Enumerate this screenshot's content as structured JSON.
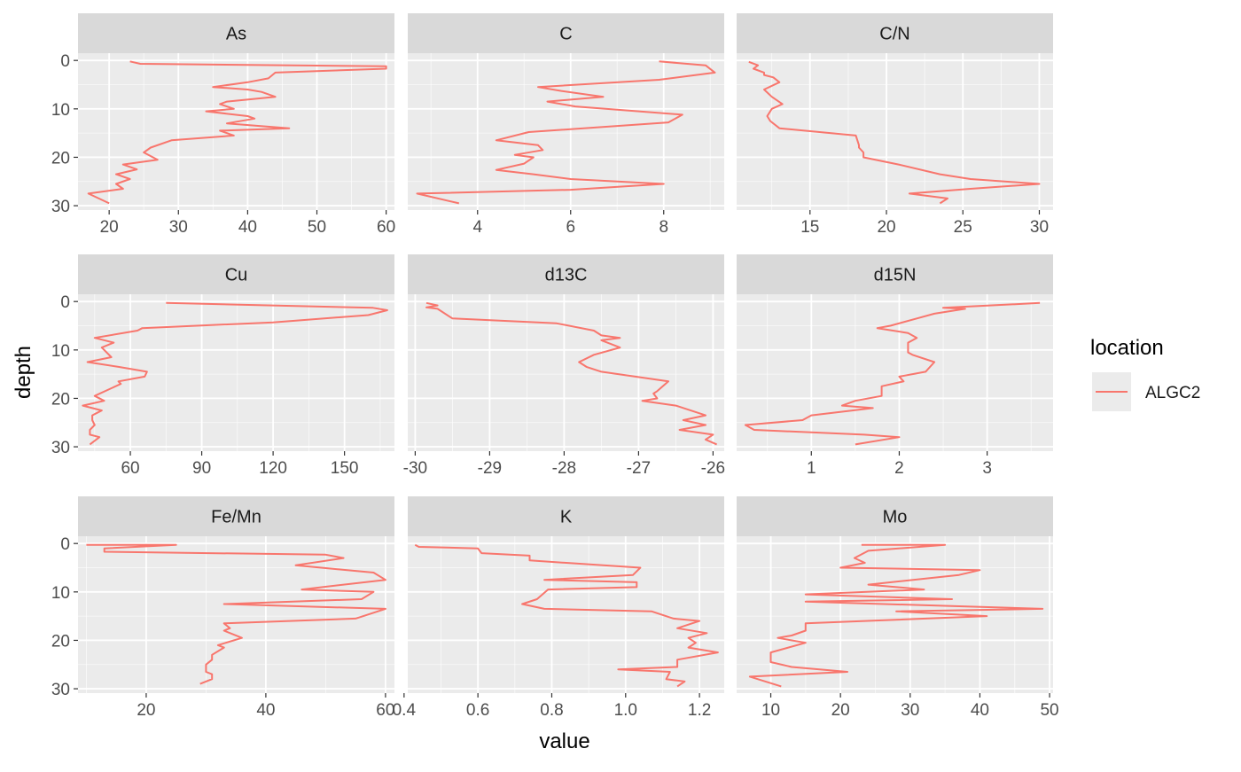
{
  "chart_data": {
    "type": "line",
    "xlabel": "value",
    "ylabel": "depth",
    "legend": {
      "title": "location",
      "position": "right",
      "entries": [
        {
          "name": "ALGC2",
          "color": "#F8766D"
        }
      ]
    },
    "colors": {
      "series": "#F8766D",
      "panel_bg": "#EBEBEB",
      "strip_bg": "#D9D9D9",
      "grid": "#FFFFFF"
    },
    "y_range": [
      0,
      30
    ],
    "y_ticks": [
      "0",
      "10",
      "20",
      "30"
    ],
    "y_tick_values": [
      0,
      10,
      20,
      30
    ],
    "y_reversed": true,
    "grid": true,
    "facets": [
      {
        "name": "As",
        "xlim": [
          15.5,
          61.2
        ],
        "x_ticks": [
          "20",
          "30",
          "40",
          "50",
          "60"
        ],
        "x_tick_values": [
          20,
          30,
          40,
          50,
          60
        ],
        "points": [
          [
            23,
            0.2
          ],
          [
            24.5,
            0.7
          ],
          [
            60,
            1.2
          ],
          [
            60,
            1.7
          ],
          [
            44,
            2.5
          ],
          [
            43,
            3.7
          ],
          [
            40,
            4.5
          ],
          [
            35,
            5.5
          ],
          [
            40,
            6
          ],
          [
            42,
            6.5
          ],
          [
            44,
            7.5
          ],
          [
            37,
            8.5
          ],
          [
            36,
            9
          ],
          [
            38,
            10
          ],
          [
            34,
            10.5
          ],
          [
            40,
            11.5
          ],
          [
            41,
            12
          ],
          [
            37,
            13
          ],
          [
            46,
            14
          ],
          [
            36,
            14.5
          ],
          [
            38,
            15.5
          ],
          [
            29,
            16.5
          ],
          [
            26,
            18
          ],
          [
            25,
            19
          ],
          [
            27,
            20.5
          ],
          [
            22,
            21.5
          ],
          [
            24,
            22.5
          ],
          [
            21,
            23.5
          ],
          [
            23,
            24.5
          ],
          [
            21,
            25.5
          ],
          [
            22,
            26.5
          ],
          [
            17,
            27.5
          ],
          [
            20,
            29.5
          ]
        ]
      },
      {
        "name": "C",
        "xlim": [
          2.5,
          9.3
        ],
        "x_ticks": [
          "4",
          "6",
          "8"
        ],
        "x_tick_values": [
          4,
          6,
          8
        ],
        "points": [
          [
            7.9,
            0.2
          ],
          [
            8.9,
            1
          ],
          [
            9.1,
            2.5
          ],
          [
            7.9,
            4
          ],
          [
            5.3,
            5.5
          ],
          [
            5.8,
            6.3
          ],
          [
            6.7,
            7.5
          ],
          [
            5.5,
            8.5
          ],
          [
            6.1,
            9.5
          ],
          [
            8.4,
            11.2
          ],
          [
            8.1,
            12.8
          ],
          [
            5.1,
            14.8
          ],
          [
            4.4,
            16.5
          ],
          [
            5.3,
            17.5
          ],
          [
            5.4,
            18.5
          ],
          [
            4.8,
            19.5
          ],
          [
            5.2,
            20
          ],
          [
            5,
            21.3
          ],
          [
            4.4,
            22.6
          ],
          [
            5.2,
            23.5
          ],
          [
            6,
            24.5
          ],
          [
            8,
            25.5
          ],
          [
            6,
            26.7
          ],
          [
            2.7,
            27.5
          ],
          [
            3.6,
            29.5
          ]
        ]
      },
      {
        "name": "C/N",
        "xlim": [
          10.2,
          30.9
        ],
        "x_ticks": [
          "15",
          "20",
          "25",
          "30"
        ],
        "x_tick_values": [
          15,
          20,
          25,
          30
        ],
        "points": [
          [
            11,
            0.3
          ],
          [
            11.6,
            1
          ],
          [
            11.3,
            1.7
          ],
          [
            12,
            2.5
          ],
          [
            12,
            3
          ],
          [
            12.6,
            3.5
          ],
          [
            13,
            4.5
          ],
          [
            12,
            6
          ],
          [
            12.5,
            7.5
          ],
          [
            13.2,
            9
          ],
          [
            12.5,
            10
          ],
          [
            12.2,
            11.5
          ],
          [
            12.4,
            12.5
          ],
          [
            13,
            14
          ],
          [
            18,
            15.5
          ],
          [
            18.2,
            17.5
          ],
          [
            18.2,
            18
          ],
          [
            18.5,
            19
          ],
          [
            18.5,
            20
          ],
          [
            20.8,
            21.5
          ],
          [
            23.5,
            23.5
          ],
          [
            25.5,
            24.5
          ],
          [
            30,
            25.5
          ],
          [
            25.5,
            26.5
          ],
          [
            21.5,
            27.5
          ],
          [
            24,
            28.5
          ],
          [
            23.5,
            29.5
          ]
        ]
      },
      {
        "name": "Cu",
        "xlim": [
          38,
          171
        ],
        "x_ticks": [
          "60",
          "90",
          "120",
          "150"
        ],
        "x_tick_values": [
          60,
          90,
          120,
          150
        ],
        "points": [
          [
            75,
            0.3
          ],
          [
            162,
            1.3
          ],
          [
            168,
            1.8
          ],
          [
            160,
            2.8
          ],
          [
            120,
            4.3
          ],
          [
            65,
            5.5
          ],
          [
            63,
            6
          ],
          [
            45,
            7.5
          ],
          [
            53,
            8.5
          ],
          [
            48,
            9.5
          ],
          [
            52,
            11.5
          ],
          [
            42,
            12.5
          ],
          [
            55,
            13.5
          ],
          [
            67,
            14.5
          ],
          [
            66,
            15.5
          ],
          [
            55,
            16.5
          ],
          [
            56,
            17
          ],
          [
            45,
            19.5
          ],
          [
            49,
            20.5
          ],
          [
            40,
            21.5
          ],
          [
            48,
            22.5
          ],
          [
            46,
            23
          ],
          [
            44,
            23.5
          ],
          [
            44,
            24.5
          ],
          [
            45,
            25.5
          ],
          [
            43,
            26.5
          ],
          [
            43,
            27.5
          ],
          [
            47,
            28
          ],
          [
            43,
            29.5
          ]
        ]
      },
      {
        "name": "d13C",
        "xlim": [
          -30.1,
          -25.85
        ],
        "x_ticks": [
          "-30",
          "-29",
          "-28",
          "-27",
          "-26"
        ],
        "x_tick_values": [
          -30,
          -29,
          -28,
          -27,
          -26
        ],
        "points": [
          [
            -29.85,
            0.3
          ],
          [
            -29.7,
            0.8
          ],
          [
            -29.85,
            1.2
          ],
          [
            -29.7,
            1.5
          ],
          [
            -29.5,
            3.5
          ],
          [
            -28.1,
            4.5
          ],
          [
            -27.6,
            6
          ],
          [
            -27.5,
            7
          ],
          [
            -27.25,
            7.5
          ],
          [
            -27.5,
            8
          ],
          [
            -27.25,
            9.5
          ],
          [
            -27.6,
            11
          ],
          [
            -27.8,
            12.5
          ],
          [
            -27.7,
            13.5
          ],
          [
            -27.5,
            14.5
          ],
          [
            -26.6,
            16.5
          ],
          [
            -26.75,
            18.5
          ],
          [
            -26.8,
            19
          ],
          [
            -26.75,
            20
          ],
          [
            -26.95,
            20.5
          ],
          [
            -26.5,
            21.5
          ],
          [
            -26.1,
            23.5
          ],
          [
            -26.4,
            24.5
          ],
          [
            -26.1,
            25.5
          ],
          [
            -26.45,
            26.5
          ],
          [
            -26,
            27.5
          ],
          [
            -26.1,
            28.5
          ],
          [
            -25.95,
            29.5
          ]
        ]
      },
      {
        "name": "d15N",
        "xlim": [
          0.15,
          3.75
        ],
        "x_ticks": [
          "1",
          "2",
          "3"
        ],
        "x_tick_values": [
          1,
          2,
          3
        ],
        "points": [
          [
            3.6,
            0.3
          ],
          [
            2.5,
            1.3
          ],
          [
            2.75,
            1.5
          ],
          [
            2.4,
            2.5
          ],
          [
            2.2,
            3.5
          ],
          [
            1.9,
            5
          ],
          [
            1.75,
            5.5
          ],
          [
            2.1,
            6.5
          ],
          [
            2.2,
            7.5
          ],
          [
            2.1,
            8.5
          ],
          [
            2.1,
            10.5
          ],
          [
            2.15,
            11
          ],
          [
            2.4,
            12.5
          ],
          [
            2.3,
            14.5
          ],
          [
            2,
            15.5
          ],
          [
            2.05,
            16.5
          ],
          [
            1.8,
            17.5
          ],
          [
            1.8,
            19.5
          ],
          [
            1.5,
            20.5
          ],
          [
            1.35,
            21.5
          ],
          [
            1.7,
            22
          ],
          [
            1,
            23.5
          ],
          [
            0.9,
            24.5
          ],
          [
            0.25,
            25.5
          ],
          [
            0.35,
            26.5
          ],
          [
            1.6,
            27.5
          ],
          [
            2,
            28
          ],
          [
            1.5,
            29.5
          ]
        ]
      },
      {
        "name": "Fe/Mn",
        "xlim": [
          8.6,
          61.5
        ],
        "x_ticks": [
          "20",
          "40",
          "60"
        ],
        "x_tick_values": [
          20,
          40,
          60
        ],
        "points": [
          [
            10,
            0.3
          ],
          [
            25,
            0.3
          ],
          [
            13,
            1
          ],
          [
            13,
            1.7
          ],
          [
            50,
            2.3
          ],
          [
            53,
            3
          ],
          [
            45,
            4.5
          ],
          [
            58,
            6
          ],
          [
            60,
            7.5
          ],
          [
            46,
            9.5
          ],
          [
            58,
            10
          ],
          [
            56,
            11.5
          ],
          [
            33,
            12.5
          ],
          [
            60,
            13.5
          ],
          [
            55,
            15.5
          ],
          [
            33,
            16.5
          ],
          [
            34,
            17.5
          ],
          [
            33,
            18
          ],
          [
            36,
            19.5
          ],
          [
            32,
            21
          ],
          [
            33,
            21.5
          ],
          [
            31,
            23
          ],
          [
            31,
            24
          ],
          [
            30,
            25
          ],
          [
            30,
            26.5
          ],
          [
            31,
            27
          ],
          [
            31,
            28
          ],
          [
            29,
            29
          ]
        ]
      },
      {
        "name": "K",
        "xlim": [
          0.41,
          1.267
        ],
        "x_ticks": [
          "0.4",
          "0.6",
          "0.8",
          "1.0",
          "1.2"
        ],
        "x_tick_values": [
          0.4,
          0.6,
          0.8,
          1.0,
          1.2
        ],
        "points": [
          [
            0.43,
            0.3
          ],
          [
            0.44,
            0.7
          ],
          [
            0.6,
            1
          ],
          [
            0.61,
            2
          ],
          [
            0.74,
            2.5
          ],
          [
            0.74,
            3.5
          ],
          [
            1.04,
            5
          ],
          [
            1.02,
            6.5
          ],
          [
            0.78,
            7.5
          ],
          [
            1.03,
            8
          ],
          [
            1.03,
            9
          ],
          [
            0.79,
            9.5
          ],
          [
            0.76,
            11.5
          ],
          [
            0.72,
            12.5
          ],
          [
            0.78,
            13.5
          ],
          [
            1.07,
            14
          ],
          [
            1.13,
            15.5
          ],
          [
            1.2,
            16
          ],
          [
            1.14,
            17.5
          ],
          [
            1.22,
            18.5
          ],
          [
            1.17,
            19.5
          ],
          [
            1.19,
            20.5
          ],
          [
            1.17,
            21.5
          ],
          [
            1.25,
            22.5
          ],
          [
            1.14,
            24
          ],
          [
            1.14,
            25.5
          ],
          [
            0.98,
            26
          ],
          [
            1.12,
            26.5
          ],
          [
            1.11,
            28
          ],
          [
            1.16,
            28.5
          ],
          [
            1.14,
            29.5
          ]
        ]
      },
      {
        "name": "Mo",
        "xlim": [
          5.1,
          50.5
        ],
        "x_ticks": [
          "10",
          "20",
          "30",
          "40",
          "50"
        ],
        "x_tick_values": [
          10,
          20,
          30,
          40,
          50
        ],
        "points": [
          [
            23,
            0.3
          ],
          [
            35,
            0.3
          ],
          [
            24,
            1.5
          ],
          [
            22,
            3
          ],
          [
            23.5,
            4
          ],
          [
            20,
            5
          ],
          [
            40,
            5.5
          ],
          [
            37,
            6.5
          ],
          [
            24,
            8.5
          ],
          [
            32,
            9.5
          ],
          [
            15,
            10.5
          ],
          [
            36,
            11.5
          ],
          [
            15,
            12
          ],
          [
            49,
            13.5
          ],
          [
            28,
            14
          ],
          [
            41,
            15
          ],
          [
            15,
            16.5
          ],
          [
            15,
            18
          ],
          [
            13,
            19
          ],
          [
            11,
            19.5
          ],
          [
            15,
            20.5
          ],
          [
            10,
            22.5
          ],
          [
            10,
            24
          ],
          [
            10,
            24.5
          ],
          [
            13,
            25.5
          ],
          [
            21,
            26.5
          ],
          [
            7,
            27.5
          ],
          [
            11.5,
            29.5
          ]
        ]
      }
    ]
  }
}
